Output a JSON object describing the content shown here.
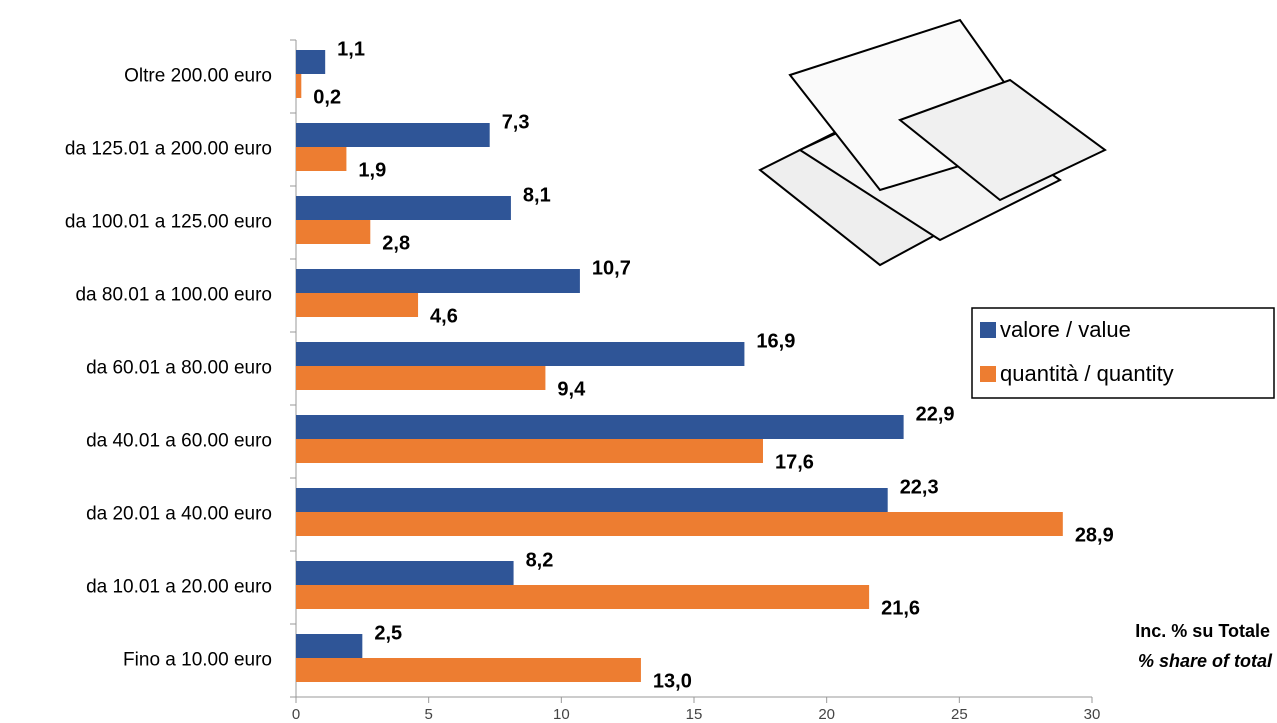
{
  "chart_data": {
    "type": "bar",
    "orientation": "horizontal",
    "categories": [
      "Oltre 200.00 euro",
      "da 125.01 a 200.00 euro",
      "da 100.01 a 125.00 euro",
      "da 80.01 a 100.00 euro",
      "da 60.01 a 80.00 euro",
      "da 40.01 a 60.00 euro",
      "da 20.01 a 40.00 euro",
      "da 10.01 a 20.00 euro",
      "Fino a 10.00 euro"
    ],
    "series": [
      {
        "name": "valore / value",
        "color": "#2f5597",
        "values": [
          1.1,
          7.3,
          8.1,
          10.7,
          16.9,
          22.9,
          22.3,
          8.2,
          2.5
        ],
        "value_labels": [
          "1,1",
          "7,3",
          "8,1",
          "10,7",
          "16,9",
          "22,9",
          "22,3",
          "8,2",
          "2,5"
        ]
      },
      {
        "name": "quantità / quantity",
        "color": "#ed7d31",
        "values": [
          0.2,
          1.9,
          2.8,
          4.6,
          9.4,
          17.6,
          28.9,
          21.6,
          13.0
        ],
        "value_labels": [
          "0,2",
          "1,9",
          "2,8",
          "4,6",
          "9,4",
          "17,6",
          "28,9",
          "21,6",
          "13,0"
        ]
      }
    ],
    "xlim": [
      0,
      30
    ],
    "xticks": [
      0,
      5,
      10,
      15,
      20,
      25,
      30
    ],
    "annotations": [
      "Inc. % su Totale",
      "% share of total"
    ],
    "legend": "right"
  }
}
